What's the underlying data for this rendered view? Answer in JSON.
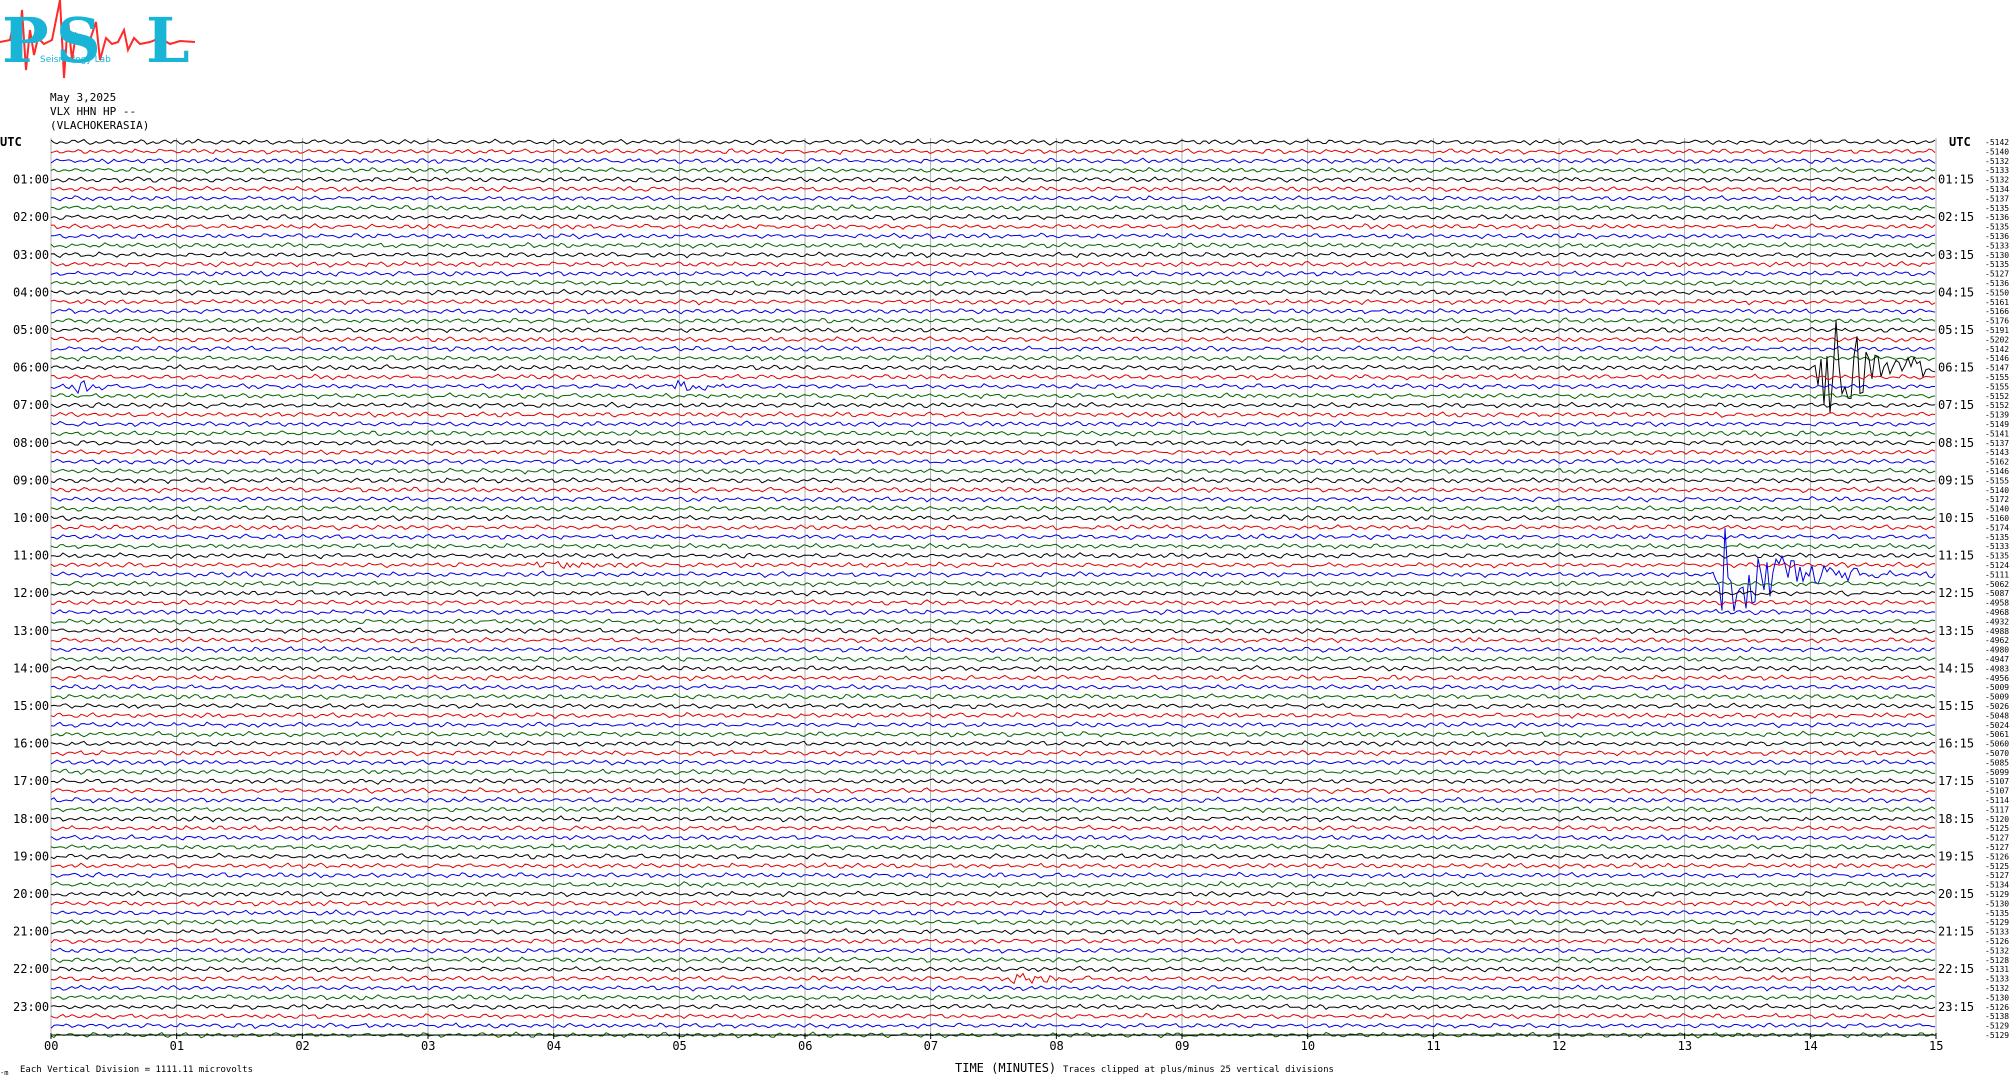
{
  "logo": {
    "big_letters": [
      "P",
      "S",
      "L"
    ],
    "small_text": "Seismology Lab",
    "primary_color": "#19b4d6",
    "wave_color": "#ff2a2a"
  },
  "header": {
    "date": "May 3,2025",
    "channel": "VLX HHN HP --",
    "station": "(VLACHOKERASIA)"
  },
  "footer": {
    "left_mark": "-m",
    "scale_note": "Each Vertical Division = 1111.11 microvolts",
    "clip_note": "Traces clipped at plus/minus 25 vertical divisions"
  },
  "chart_data": {
    "type": "line",
    "title": "",
    "xlabel": "TIME (MINUTES)",
    "xlim": [
      0,
      15
    ],
    "x_ticks": [
      "00",
      "01",
      "02",
      "03",
      "04",
      "05",
      "06",
      "07",
      "08",
      "09",
      "10",
      "11",
      "12",
      "13",
      "14",
      "15"
    ],
    "left_axis_label": "UTC",
    "right_axis_label": "UTC",
    "left_time_labels": [
      "01:00",
      "02:00",
      "03:00",
      "04:00",
      "05:00",
      "06:00",
      "07:00",
      "08:00",
      "09:00",
      "10:00",
      "11:00",
      "12:00",
      "13:00",
      "14:00",
      "15:00",
      "16:00",
      "17:00",
      "18:00",
      "19:00",
      "20:00",
      "21:00",
      "22:00",
      "23:00"
    ],
    "right_time_labels": [
      "01:15",
      "02:15",
      "03:15",
      "04:15",
      "05:15",
      "06:15",
      "07:15",
      "08:15",
      "09:15",
      "10:15",
      "11:15",
      "12:15",
      "13:15",
      "14:15",
      "15:15",
      "16:15",
      "17:15",
      "18:15",
      "19:15",
      "20:15",
      "21:15",
      "22:15",
      "23:15"
    ],
    "trace_minutes": 15,
    "trace_count": 96,
    "trace_colors": [
      "#000000",
      "#e00000",
      "#0000e0",
      "#006400"
    ],
    "trace_offsets": [
      "-5142",
      "-5140",
      "-5132",
      "-5133",
      "-5132",
      "-5134",
      "-5137",
      "-5135",
      "-5136",
      "-5135",
      "-5136",
      "-5133",
      "-5130",
      "-5135",
      "-5127",
      "-5136",
      "-5150",
      "-5161",
      "-5166",
      "-5176",
      "-5191",
      "-5202",
      "-5142",
      "-5146",
      "-5147",
      "-5155",
      "-5155",
      "-5152",
      "-5152",
      "-5139",
      "-5149",
      "-5141",
      "-5137",
      "-5143",
      "-5162",
      "-5146",
      "-5155",
      "-5140",
      "-5172",
      "-5140",
      "-5160",
      "-5174",
      "-5135",
      "-5133",
      "-5135",
      "-5124",
      "-5111",
      "-5062",
      "-5087",
      "-4958",
      "-4968",
      "-4932",
      "-4988",
      "-4962",
      "-4980",
      "-4947",
      "-4983",
      "-4956",
      "-5009",
      "-5009",
      "-5026",
      "-5048",
      "-5024",
      "-5061",
      "-5060",
      "-5070",
      "-5085",
      "-5099",
      "-5107",
      "-5107",
      "-5114",
      "-5117",
      "-5120",
      "-5125",
      "-5127",
      "-5127",
      "-5126",
      "-5125",
      "-5127",
      "-5134",
      "-5129",
      "-5130",
      "-5135",
      "-5129",
      "-5133",
      "-5126",
      "-5132",
      "-5128",
      "-5131",
      "-5133",
      "-5132",
      "-5130",
      "-5126",
      "-5138",
      "-5129",
      "-5129"
    ],
    "events": [
      {
        "trace": 24,
        "minute": 14.1,
        "amplitude": "large",
        "color": "#e00000"
      },
      {
        "trace": 46,
        "minute": 13.3,
        "amplitude": "large",
        "color": "#e00000"
      },
      {
        "trace": 45,
        "minute": 3.85,
        "amplitude": "small",
        "color": "#e00000"
      },
      {
        "trace": 26,
        "minute": 4.95,
        "amplitude": "small",
        "color": "#0000e0"
      },
      {
        "trace": 26,
        "minute": 0.1,
        "amplitude": "small",
        "color": "#0000e0"
      },
      {
        "trace": 89,
        "minute": 7.7,
        "amplitude": "small",
        "color": "#000000"
      }
    ]
  }
}
